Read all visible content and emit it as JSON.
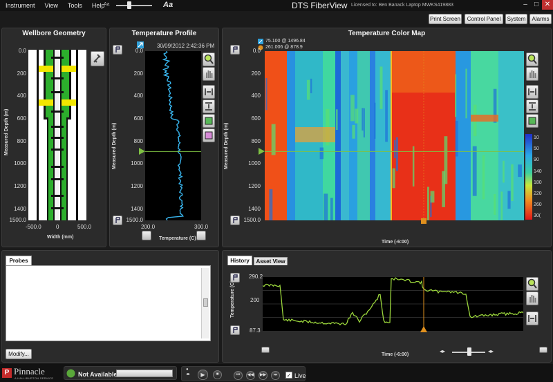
{
  "menu": [
    "Instrument",
    "View",
    "Tools",
    "Help"
  ],
  "font_size": {
    "small": "Aa",
    "large": "Aa",
    "level": 0.3
  },
  "app_title": "DTS FiberView",
  "license": "Licensed to: Ben Banack Laptop MWKS419883",
  "window_controls": {
    "minimize": "–",
    "maximize": "□",
    "close": "✕"
  },
  "toolbar": {
    "print": "Print Screen",
    "control": "Control Panel",
    "system": "System",
    "alarms": "Alarms"
  },
  "wellbore": {
    "title": "Wellbore Geometry",
    "ylabel": "Measured Depth (m)",
    "xlabel": "Width (mm)",
    "yticks": [
      "0.0",
      "200",
      "400",
      "600",
      "800",
      "1000",
      "1200",
      "1400",
      "1500.0"
    ],
    "xticks": [
      "-500.0",
      "0",
      "500.0"
    ]
  },
  "profile": {
    "title": "Temperature Profile",
    "timestamp": "30/09/2012 2:42:36 PM",
    "ylabel": "Measured Depth (m)",
    "xlabel": "Temperature (C)",
    "yticks": [
      "0.0",
      "200",
      "400",
      "600",
      "800",
      "1000",
      "1200",
      "1400",
      "1500.0"
    ],
    "xticks": [
      "200.0",
      "300.0"
    ],
    "marker_depth": 890
  },
  "colormap": {
    "title": "Temperature Color Map",
    "cursor1": "75.100 @ 1496.84",
    "cursor2": "261.006 @ 878.9",
    "ylabel": "Measured Depth (m)",
    "xlabel": "Time (-6:00)",
    "yticks": [
      "0.0",
      "200",
      "400",
      "600",
      "800",
      "1000",
      "1200",
      "1400",
      "1500.0"
    ],
    "scale_ticks": [
      "10",
      "50",
      "90",
      "140",
      "180",
      "220",
      "260",
      "30("
    ]
  },
  "probes": {
    "tab": "Probes",
    "modify": "Modify..."
  },
  "history": {
    "tab_history": "History",
    "tab_asset": "Asset View",
    "ylabel": "Temperature (C)",
    "xlabel": "Time (-6:00)",
    "yticks": [
      "290.2",
      "200",
      "87.3"
    ],
    "ylim": [
      87.3,
      290.2
    ]
  },
  "status": {
    "text": "Not Available",
    "live": "Live",
    "live_checked": true,
    "logo": "Pinnacle",
    "logo_sub": "A HALLIBURTON SERVICE"
  },
  "media_buttons": [
    "⏮",
    "◀◀",
    "▶▶",
    "⏭"
  ],
  "colors": {
    "accent": "#2f9fd8",
    "profile_line": "#39b7f0",
    "history_line": "#9bd63c",
    "marker": "#7fc243",
    "cursor": "#e0901e"
  }
}
